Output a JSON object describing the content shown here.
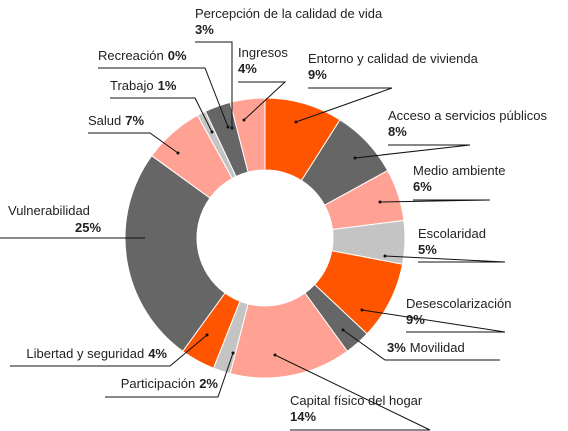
{
  "chart_data": {
    "type": "donut",
    "categories": [
      "Entorno y calidad de vivienda",
      "Acceso a servicios públicos",
      "Medio ambiente",
      "Escolaridad",
      "Desescolarización",
      "Movilidad",
      "Capital físico del hogar",
      "Participación",
      "Libertad y seguridad",
      "Vulnerabilidad",
      "Salud",
      "Trabajo",
      "Recreación",
      "Percepción de la calidad de vida",
      "Ingresos"
    ],
    "values": [
      9,
      8,
      6,
      5,
      9,
      3,
      14,
      2,
      4,
      25,
      7,
      1,
      0,
      3,
      4
    ],
    "value_labels": [
      "9%",
      "8%",
      "6%",
      "5%",
      "9%",
      "3%",
      "14%",
      "2%",
      "4%",
      "25%",
      "7%",
      "1%",
      "0%",
      "3%",
      "4%"
    ],
    "colors": [
      "#ff5500",
      "#666666",
      "#ffa293",
      "#c4c4c4",
      "#ff5500",
      "#666666",
      "#ffa293",
      "#c4c4c4",
      "#ff5500",
      "#666666",
      "#ffa293",
      "#c4c4c4",
      "#ff5500",
      "#666666",
      "#ffa293"
    ]
  }
}
